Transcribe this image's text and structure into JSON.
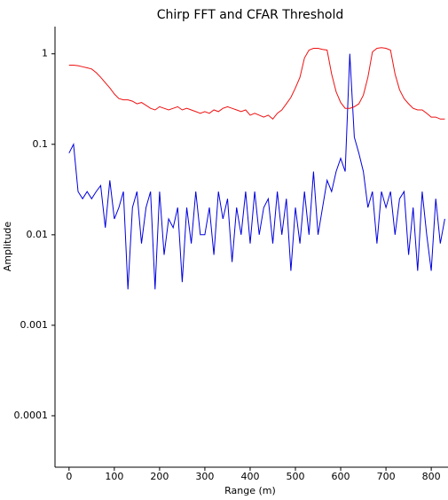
{
  "chart_data": {
    "type": "line",
    "title": "Chirp FFT and CFAR Threshold",
    "x_label": "Range (m)",
    "y_label": "Amplitude",
    "log_y": true,
    "x": [
      0,
      10,
      20,
      30,
      40,
      50,
      60,
      70,
      80,
      90,
      100,
      110,
      120,
      130,
      140,
      150,
      160,
      170,
      180,
      190,
      200,
      210,
      220,
      230,
      240,
      250,
      260,
      270,
      280,
      290,
      300,
      310,
      320,
      330,
      340,
      350,
      360,
      370,
      380,
      390,
      400,
      410,
      420,
      430,
      440,
      450,
      460,
      470,
      480,
      490,
      500,
      510,
      520,
      530,
      540,
      550,
      560,
      570,
      580,
      590,
      600,
      610,
      620,
      630,
      640,
      650,
      660,
      670,
      680,
      690,
      700,
      710,
      720,
      730,
      740,
      750,
      760,
      770,
      780,
      790,
      800,
      810,
      820,
      830
    ],
    "series": [
      {
        "color": "#0000dd",
        "values": [
          0.08,
          0.1,
          0.03,
          0.025,
          0.03,
          0.025,
          0.03,
          0.035,
          0.012,
          0.04,
          0.015,
          0.02,
          0.03,
          0.0025,
          0.02,
          0.03,
          0.008,
          0.02,
          0.03,
          0.0025,
          0.03,
          0.006,
          0.015,
          0.012,
          0.02,
          0.003,
          0.02,
          0.008,
          0.03,
          0.01,
          0.01,
          0.02,
          0.006,
          0.03,
          0.015,
          0.025,
          0.005,
          0.02,
          0.01,
          0.03,
          0.008,
          0.03,
          0.01,
          0.02,
          0.025,
          0.008,
          0.03,
          0.01,
          0.025,
          0.004,
          0.02,
          0.008,
          0.03,
          0.01,
          0.05,
          0.01,
          0.02,
          0.04,
          0.03,
          0.05,
          0.07,
          0.05,
          1.0,
          0.12,
          0.08,
          0.05,
          0.02,
          0.03,
          0.008,
          0.03,
          0.02,
          0.03,
          0.01,
          0.025,
          0.03,
          0.006,
          0.02,
          0.004,
          0.03,
          0.01,
          0.004,
          0.025,
          0.008,
          0.015
        ]
      },
      {
        "color": "#ee1111",
        "values": [
          0.75,
          0.75,
          0.74,
          0.72,
          0.7,
          0.68,
          0.62,
          0.55,
          0.48,
          0.42,
          0.36,
          0.32,
          0.31,
          0.31,
          0.3,
          0.28,
          0.29,
          0.27,
          0.25,
          0.24,
          0.26,
          0.25,
          0.24,
          0.25,
          0.26,
          0.24,
          0.25,
          0.24,
          0.23,
          0.22,
          0.23,
          0.22,
          0.24,
          0.23,
          0.25,
          0.26,
          0.25,
          0.24,
          0.23,
          0.24,
          0.21,
          0.22,
          0.21,
          0.2,
          0.21,
          0.19,
          0.22,
          0.24,
          0.28,
          0.33,
          0.42,
          0.55,
          0.9,
          1.1,
          1.15,
          1.15,
          1.12,
          1.1,
          0.6,
          0.38,
          0.29,
          0.25,
          0.25,
          0.26,
          0.28,
          0.35,
          0.55,
          1.05,
          1.15,
          1.17,
          1.15,
          1.1,
          0.6,
          0.4,
          0.32,
          0.28,
          0.25,
          0.24,
          0.24,
          0.22,
          0.2,
          0.2,
          0.19,
          0.19
        ]
      }
    ],
    "xlim": [
      -31,
      837
    ],
    "xticks": [
      0,
      100,
      200,
      300,
      400,
      500,
      600,
      700,
      800
    ],
    "ylim": [
      2.7e-05,
      2.0
    ],
    "yticks": [
      0.0001,
      0.001,
      0.01,
      0.1,
      1
    ]
  }
}
